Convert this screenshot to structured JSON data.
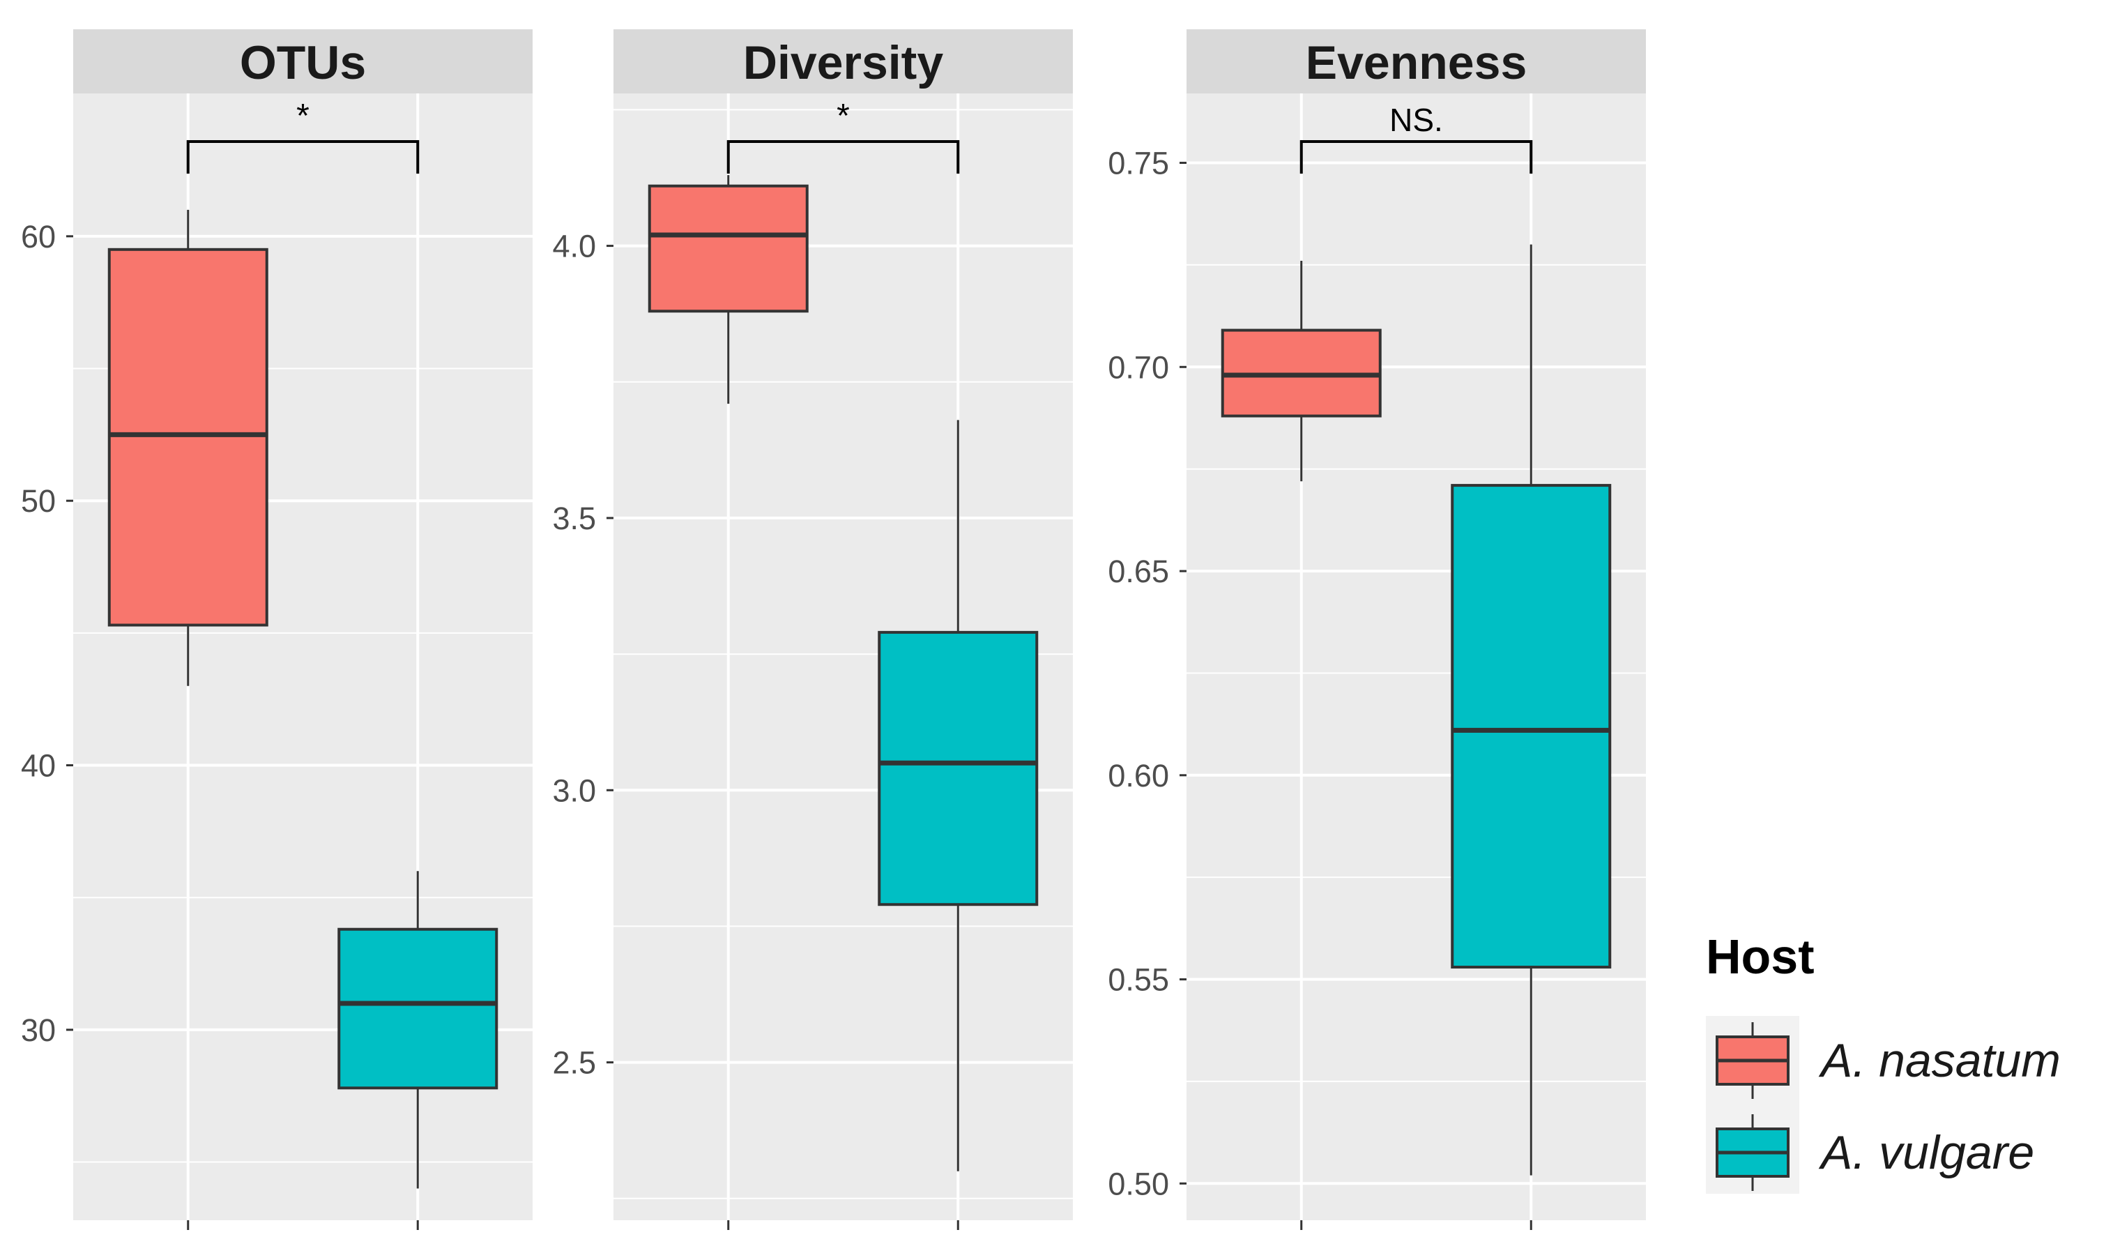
{
  "chart_data": {
    "type": "boxplot",
    "legend": {
      "title": "Host",
      "position": "right",
      "entries": [
        {
          "label": "A. nasatum",
          "color": "#F8766D"
        },
        {
          "label": "A. vulgare",
          "color": "#00BFC4"
        }
      ]
    },
    "style": {
      "panel_background": "#EBEBEB",
      "strip_background": "#D9D9D9",
      "grid_color": "#FFFFFF",
      "box_outline": "#333333",
      "tick_label_color": "#4D4D4D"
    },
    "panels": [
      {
        "title": "OTUs",
        "ylim": [
          22.8,
          65.4
        ],
        "yticks": [
          30,
          40,
          50,
          60
        ],
        "minor_yticks": [
          25,
          35,
          45,
          55
        ],
        "significance": "*",
        "boxes": [
          {
            "group": "A. nasatum",
            "min": 43,
            "q1": 45.3,
            "median": 52.5,
            "q3": 59.5,
            "max": 61
          },
          {
            "group": "A. vulgare",
            "min": 24,
            "q1": 27.8,
            "median": 31,
            "q3": 33.8,
            "max": 36
          }
        ]
      },
      {
        "title": "Diversity",
        "ylim": [
          2.21,
          4.28
        ],
        "yticks": [
          2.5,
          3.0,
          3.5,
          4.0
        ],
        "ytick_labels": [
          "2.5",
          "3.0",
          "3.5",
          "4.0"
        ],
        "minor_yticks": [
          2.25,
          2.75,
          3.25,
          3.75,
          4.25
        ],
        "significance": "*",
        "boxes": [
          {
            "group": "A. nasatum",
            "min": 3.71,
            "q1": 3.88,
            "median": 4.02,
            "q3": 4.11,
            "max": 4.13
          },
          {
            "group": "A. vulgare",
            "min": 2.3,
            "q1": 2.79,
            "median": 3.05,
            "q3": 3.29,
            "max": 3.68
          }
        ]
      },
      {
        "title": "Evenness",
        "ylim": [
          0.491,
          0.767
        ],
        "yticks": [
          0.5,
          0.55,
          0.6,
          0.65,
          0.7,
          0.75
        ],
        "ytick_labels": [
          "0.50",
          "0.55",
          "0.60",
          "0.65",
          "0.70",
          "0.75"
        ],
        "minor_yticks": [
          0.525,
          0.575,
          0.625,
          0.675,
          0.725
        ],
        "significance": "NS.",
        "boxes": [
          {
            "group": "A. nasatum",
            "min": 0.672,
            "q1": 0.688,
            "median": 0.698,
            "q3": 0.709,
            "max": 0.726
          },
          {
            "group": "A. vulgare",
            "min": 0.502,
            "q1": 0.553,
            "median": 0.611,
            "q3": 0.671,
            "max": 0.73
          }
        ]
      }
    ]
  }
}
